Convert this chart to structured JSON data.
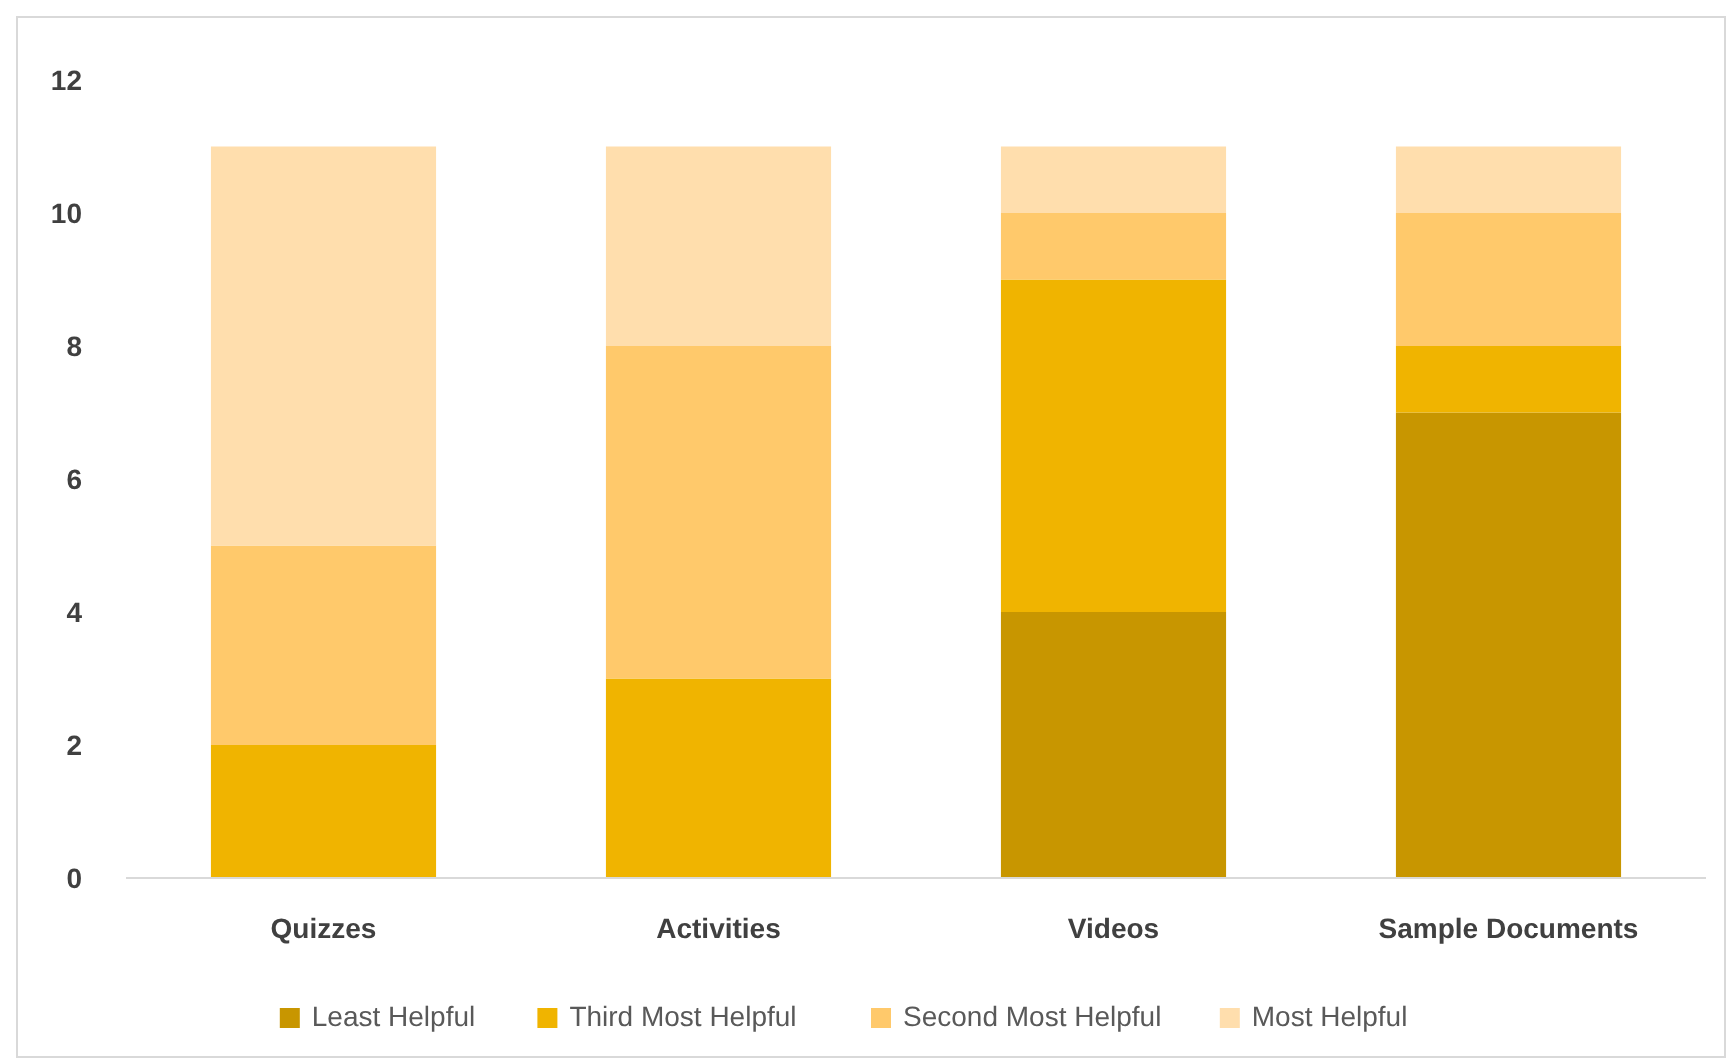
{
  "chart_data": {
    "type": "bar",
    "stacked": true,
    "categories": [
      "Quizzes",
      "Activities",
      "Videos",
      "Sample Documents"
    ],
    "series": [
      {
        "name": "Least Helpful",
        "color": "#c89600",
        "values": [
          0,
          0,
          4,
          7
        ]
      },
      {
        "name": "Third Most Helpful",
        "color": "#f0b400",
        "values": [
          2,
          3,
          5,
          1
        ]
      },
      {
        "name": "Second Most Helpful",
        "color": "#ffc96b",
        "values": [
          3,
          5,
          1,
          2
        ]
      },
      {
        "name": "Most Helpful",
        "color": "#ffdead",
        "values": [
          6,
          3,
          1,
          1
        ]
      }
    ],
    "ylim": [
      0,
      12
    ],
    "yticks": [
      0,
      2,
      4,
      6,
      8,
      10,
      12
    ],
    "grid": false,
    "legend": "bottom"
  }
}
